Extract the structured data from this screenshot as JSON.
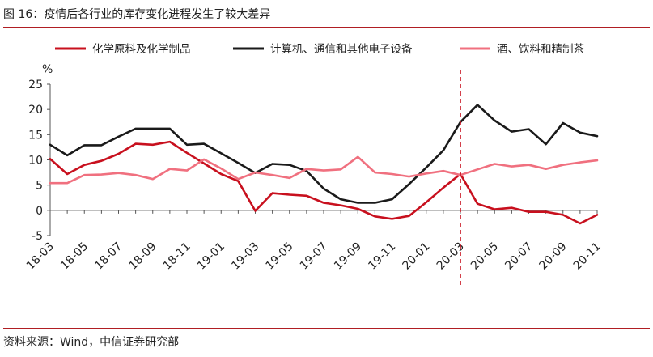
{
  "figure": {
    "title": "图 16：疫情后各行业的库存变化进程发生了较大差异",
    "source": "资料来源：Wind，中信证券研究部"
  },
  "chart_data": {
    "type": "line",
    "y_unit": "%",
    "ylim": [
      -5,
      25
    ],
    "yticks": [
      "25",
      "20",
      "15",
      "10",
      "5",
      "0",
      "-5"
    ],
    "ytick_values": [
      25,
      20,
      15,
      10,
      5,
      0,
      -5
    ],
    "x": [
      "18-03",
      "18-04",
      "18-05",
      "18-06",
      "18-07",
      "18-08",
      "18-09",
      "18-10",
      "18-11",
      "18-12",
      "19-01",
      "19-02",
      "19-03",
      "19-04",
      "19-05",
      "19-06",
      "19-07",
      "19-08",
      "19-09",
      "19-10",
      "19-11",
      "19-12",
      "20-01",
      "20-02",
      "20-03",
      "20-04",
      "20-05",
      "20-06",
      "20-07",
      "20-08",
      "20-09",
      "20-10",
      "20-11"
    ],
    "xtick_labels": [
      "18-03",
      "18-05",
      "18-07",
      "18-09",
      "18-11",
      "19-01",
      "19-03",
      "19-05",
      "19-07",
      "19-09",
      "19-11",
      "20-01",
      "20-03",
      "20-05",
      "20-07",
      "20-09",
      "20-11"
    ],
    "marker_line_x": "20-03",
    "legend_position": "top",
    "series": [
      {
        "name": "化学原料及化学制品",
        "color": "#c8101e",
        "values": [
          10.2,
          7.2,
          9.0,
          9.8,
          11.2,
          13.2,
          13.0,
          13.6,
          11.4,
          9.3,
          7.2,
          5.8,
          -0.1,
          3.4,
          3.1,
          2.9,
          1.5,
          1.0,
          0.3,
          -1.2,
          -1.7,
          -1.1,
          1.6,
          4.5,
          7.2,
          1.3,
          0.2,
          0.5,
          -0.3,
          -0.3,
          -0.9,
          -2.6,
          -0.9
        ]
      },
      {
        "name": "计算机、通信和其他电子设备",
        "color": "#1a1a1a",
        "values": [
          13.0,
          10.9,
          12.9,
          12.9,
          14.6,
          16.2,
          16.2,
          16.2,
          13.0,
          13.2,
          11.3,
          9.4,
          7.4,
          9.2,
          9.0,
          7.8,
          4.3,
          2.2,
          1.5,
          1.5,
          2.2,
          5.2,
          8.5,
          11.9,
          17.5,
          20.9,
          17.8,
          15.6,
          16.1,
          13.1,
          17.3,
          15.4,
          14.7
        ]
      },
      {
        "name": "酒、饮料和精制茶",
        "color": "#f0707f",
        "values": [
          5.4,
          5.4,
          7.0,
          7.1,
          7.4,
          7.0,
          6.2,
          8.2,
          7.9,
          10.1,
          8.3,
          6.2,
          7.5,
          7.0,
          6.4,
          8.2,
          7.9,
          8.1,
          10.6,
          7.5,
          7.2,
          6.7,
          7.3,
          7.8,
          7.0,
          8.1,
          9.2,
          8.7,
          9.0,
          8.2,
          9.0,
          9.5,
          9.9
        ]
      }
    ]
  }
}
